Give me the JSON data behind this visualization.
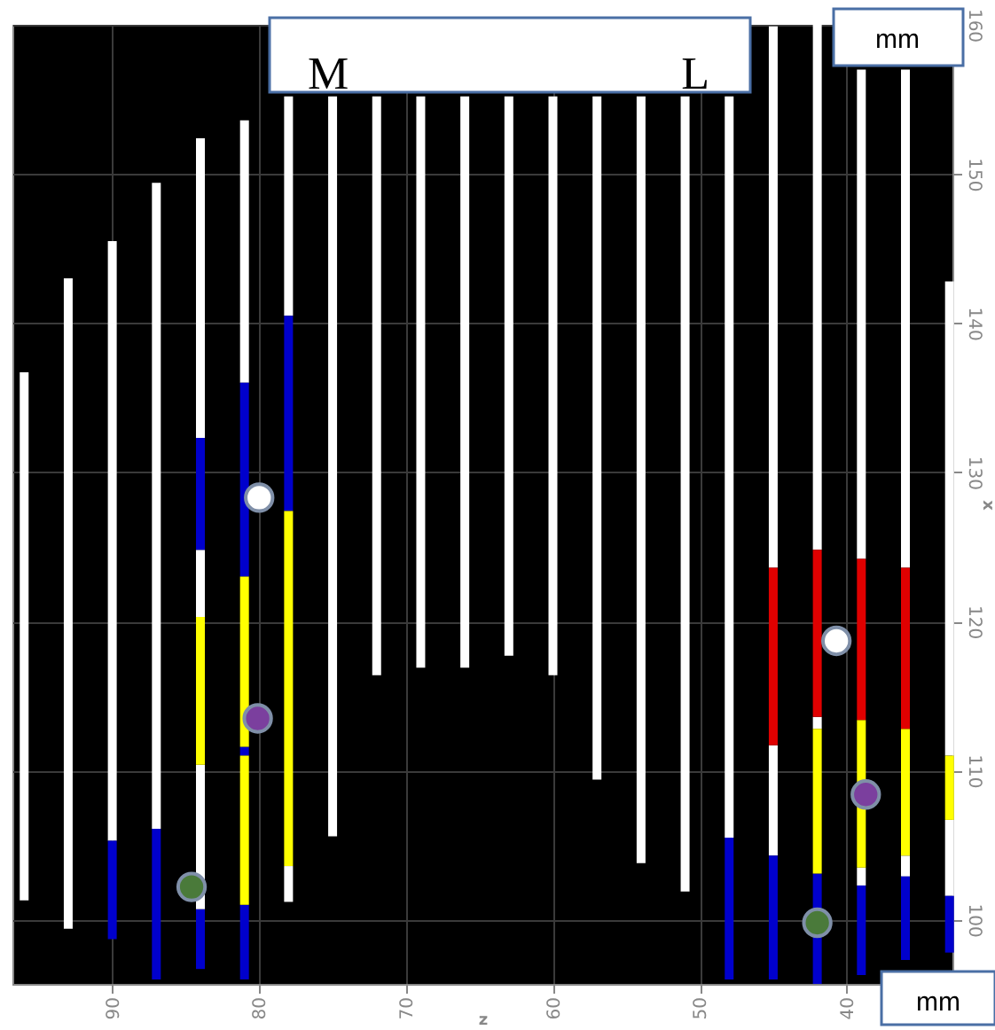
{
  "chart_data": {
    "type": "bar",
    "xlabel": "z",
    "ylabel": "x",
    "annotations": [
      "M",
      "L",
      "mm",
      "mm"
    ],
    "xlim": [
      96.8,
      32.8
    ],
    "xticks": [
      90,
      80,
      70,
      60,
      50,
      40
    ],
    "ylim": [
      95.7,
      160
    ],
    "yticks": [
      100,
      110,
      120,
      130,
      140,
      150,
      160
    ],
    "grid": true,
    "series": [
      {
        "color": "#ffffff",
        "x": [
          96,
          93,
          90,
          87,
          84,
          81,
          78,
          75,
          72,
          69,
          66,
          63,
          60,
          57,
          54,
          51,
          48,
          45,
          42,
          39,
          36,
          33
        ],
        "base": [
          101.3,
          99.4,
          105.3,
          106.1,
          132.3,
          136,
          140.5,
          105.6,
          116.4,
          116.9,
          116.9,
          117.7,
          116.4,
          109.4,
          103.8,
          101.9,
          105.5,
          123.6,
          124.8,
          124.2,
          123.6,
          111
        ],
        "values": [
          35.4,
          43.6,
          40.2,
          43.3,
          20.1,
          17.6,
          14.7,
          49.6,
          38.8,
          38.3,
          38.3,
          37.5,
          38.8,
          45.8,
          51.4,
          53.3,
          49.7,
          36.3,
          35.2,
          32.8,
          33.4,
          31.8
        ]
      },
      {
        "color": "#ffffff",
        "x": [
          84,
          78,
          45,
          42,
          39,
          36,
          33
        ],
        "base": [
          100.7,
          101.2,
          104.3,
          112.8,
          102.3,
          102.9,
          101.6
        ],
        "values": [
          9.7,
          2.4,
          7.4,
          0.8,
          1.2,
          1.4,
          5.1
        ]
      },
      {
        "color": "#ffffff",
        "x": [
          84
        ],
        "base": [
          120.3
        ],
        "values": [
          4.5
        ]
      },
      {
        "color": "#0000cc",
        "x": [
          90,
          87,
          84,
          81,
          48,
          45,
          42,
          39,
          36,
          33
        ],
        "base": [
          98.7,
          96,
          96.7,
          96,
          96,
          96,
          95.7,
          96.3,
          97.3,
          97.8
        ],
        "values": [
          6.6,
          10.1,
          4.0,
          5.0,
          9.5,
          8.3,
          7.4,
          6.0,
          5.6,
          3.8
        ]
      },
      {
        "color": "#0000cc",
        "x": [
          84,
          81,
          78
        ],
        "base": [
          124.8,
          123,
          127.4
        ],
        "values": [
          7.5,
          13.0,
          13.1
        ]
      },
      {
        "color": "#0000cc",
        "x": [
          81
        ],
        "base": [
          111
        ],
        "values": [
          0.6
        ]
      },
      {
        "color": "#ffff00",
        "x": [
          84,
          81,
          78,
          42,
          39,
          36,
          33
        ],
        "base": [
          110.4,
          111.6,
          103.6,
          103.1,
          103.5,
          104.3,
          106.7
        ],
        "values": [
          9.9,
          11.4,
          23.8,
          9.7,
          9.9,
          8.5,
          4.3
        ]
      },
      {
        "color": "#ffff00",
        "x": [
          81
        ],
        "base": [
          101
        ],
        "values": [
          10.0
        ]
      },
      {
        "color": "#e00000",
        "x": [
          45,
          42,
          39,
          36
        ],
        "base": [
          111.7,
          113.6,
          113.4,
          112.8
        ],
        "values": [
          11.9,
          11.2,
          10.8,
          10.8
        ]
      },
      {
        "type": "scatter",
        "marker": "circle",
        "x": [
          84.6,
          80.1,
          80,
          42,
          40.7,
          38.7
        ],
        "values": [
          102.2,
          113.5,
          128.3,
          99.8,
          118.7,
          108.4
        ],
        "colors": [
          "#4a7a3a",
          "#7b3f9e",
          "#ffffff",
          "#4a7a3a",
          "#ffffff",
          "#7b3f9e"
        ]
      }
    ]
  }
}
